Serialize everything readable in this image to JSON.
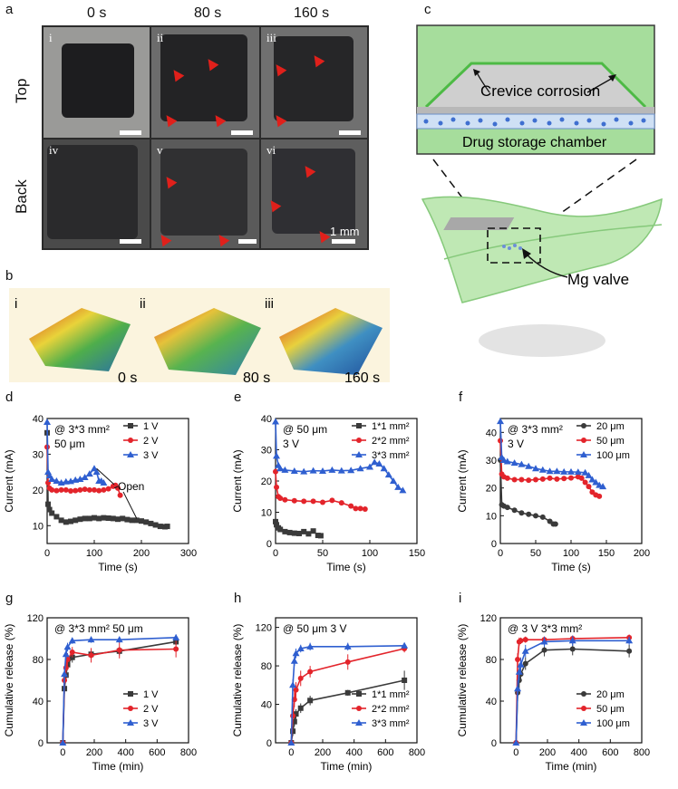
{
  "panels": {
    "a": "a",
    "b": "b",
    "c": "c",
    "d": "d",
    "e": "e",
    "f": "f",
    "g": "g",
    "h": "h",
    "i": "i"
  },
  "panel_a": {
    "times": [
      "0 s",
      "80 s",
      "160 s"
    ],
    "rows": [
      "Top",
      "Back"
    ],
    "tiles": [
      "i",
      "ii",
      "iii",
      "iv",
      "v",
      "vi"
    ],
    "scale": "1 mm"
  },
  "panel_b": {
    "tiles": [
      "i",
      "ii",
      "iii"
    ],
    "times": [
      "0 s",
      "80 s",
      "160 s"
    ]
  },
  "panel_c": {
    "crevice": "Crevice corrosion",
    "chamber": "Drug storage chamber",
    "valve": "Mg valve"
  },
  "colors": {
    "black": "#3a3a3a",
    "red": "#e3242b",
    "blue": "#2f5fd0",
    "arrow": "#e0201b"
  },
  "chart_data": [
    {
      "panel": "d",
      "type": "line",
      "annotation": [
        "@ 3*3 mm²",
        "50 μm"
      ],
      "callout": "Open",
      "xlabel": "Time (s)",
      "ylabel": "Current (mA)",
      "xlim": [
        0,
        300
      ],
      "ylim": [
        5,
        40
      ],
      "xticks": [
        "0",
        "100",
        "200",
        "300"
      ],
      "yticks": [
        "10",
        "20",
        "30",
        "40"
      ],
      "legend_position": "top-right",
      "series": [
        {
          "name": "1 V",
          "color": "black",
          "marker": "square",
          "x": [
            0,
            2,
            5,
            10,
            20,
            30,
            40,
            50,
            60,
            70,
            80,
            90,
            100,
            110,
            120,
            130,
            140,
            150,
            160,
            170,
            180,
            190,
            200,
            210,
            220,
            230,
            240,
            250,
            255
          ],
          "y": [
            36,
            16,
            14.5,
            13.5,
            12.5,
            11.5,
            11,
            11.2,
            11.5,
            11.8,
            12,
            12,
            12.2,
            12,
            12.2,
            12.1,
            12,
            11.8,
            12,
            11.7,
            11.5,
            11.5,
            11.3,
            11,
            10.6,
            10.2,
            9.8,
            9.7,
            9.8
          ]
        },
        {
          "name": "2 V",
          "color": "red",
          "marker": "circle",
          "x": [
            0,
            2,
            5,
            10,
            20,
            30,
            40,
            50,
            60,
            70,
            80,
            90,
            100,
            110,
            120,
            130,
            140,
            145,
            150,
            155
          ],
          "y": [
            32,
            22,
            20.5,
            20,
            19.8,
            20,
            20,
            19.7,
            19.8,
            20,
            20.2,
            20,
            20,
            19.8,
            20,
            20.3,
            21,
            21.3,
            20.5,
            18.5
          ]
        },
        {
          "name": "3 V",
          "color": "blue",
          "marker": "triangle",
          "x": [
            0,
            2,
            5,
            10,
            20,
            30,
            40,
            50,
            60,
            70,
            80,
            90,
            100,
            105,
            110,
            115,
            120
          ],
          "y": [
            39,
            25,
            24,
            23,
            22.5,
            22,
            22.3,
            22.4,
            22.8,
            23,
            23.5,
            24.5,
            26,
            25,
            22.5,
            22.5,
            22
          ]
        }
      ]
    },
    {
      "panel": "e",
      "type": "line",
      "annotation": [
        "@ 50 μm",
        "3 V"
      ],
      "xlabel": "Time (s)",
      "ylabel": "Current (mA)",
      "xlim": [
        0,
        150
      ],
      "ylim": [
        0,
        40
      ],
      "xticks": [
        "0",
        "50",
        "100",
        "150"
      ],
      "yticks": [
        "0",
        "10",
        "20",
        "30",
        "40"
      ],
      "legend_position": "top-right",
      "series": [
        {
          "name": "1*1 mm²",
          "color": "black",
          "marker": "square",
          "x": [
            0,
            1,
            3,
            5,
            10,
            15,
            20,
            25,
            30,
            35,
            40,
            45,
            48
          ],
          "y": [
            7,
            6,
            5,
            4.5,
            3.8,
            3.5,
            3.3,
            3.2,
            3.8,
            3.1,
            4,
            2.6,
            2.5
          ]
        },
        {
          "name": "2*2 mm²",
          "color": "red",
          "marker": "circle",
          "x": [
            0,
            1,
            3,
            5,
            10,
            20,
            30,
            40,
            50,
            60,
            70,
            80,
            85,
            90,
            95
          ],
          "y": [
            23,
            18,
            15,
            14.5,
            14,
            13.7,
            13.5,
            13.5,
            13.2,
            13.8,
            13,
            12,
            11.2,
            11.2,
            11
          ]
        },
        {
          "name": "3*3 mm²",
          "color": "blue",
          "marker": "triangle",
          "x": [
            0,
            1,
            3,
            5,
            10,
            20,
            30,
            40,
            50,
            60,
            70,
            80,
            90,
            100,
            105,
            110,
            115,
            120,
            125,
            130,
            135
          ],
          "y": [
            39,
            28,
            25,
            24,
            23.5,
            23.2,
            23,
            23.3,
            23.2,
            23.5,
            23.3,
            23.4,
            24,
            24.5,
            26,
            25.5,
            24,
            22,
            20,
            18,
            17
          ]
        }
      ]
    },
    {
      "panel": "f",
      "type": "line",
      "annotation": [
        "@ 3*3 mm²",
        "3 V"
      ],
      "xlabel": "Time (s)",
      "ylabel": "Current (mA)",
      "xlim": [
        0,
        200
      ],
      "ylim": [
        0,
        45
      ],
      "xticks": [
        "0",
        "50",
        "100",
        "150",
        "200"
      ],
      "yticks": [
        "0",
        "10",
        "20",
        "30",
        "40"
      ],
      "legend_position": "top-right",
      "series": [
        {
          "name": "20 μm",
          "color": "black",
          "marker": "circle",
          "x": [
            0,
            2,
            5,
            10,
            20,
            30,
            40,
            50,
            60,
            70,
            75,
            78
          ],
          "y": [
            30,
            14,
            13.5,
            13,
            12,
            11,
            10.5,
            10,
            9.5,
            8,
            7,
            7
          ]
        },
        {
          "name": "50 μm",
          "color": "red",
          "marker": "circle",
          "x": [
            0,
            2,
            5,
            10,
            20,
            30,
            40,
            50,
            60,
            70,
            80,
            90,
            100,
            110,
            115,
            120,
            125,
            130,
            135,
            140
          ],
          "y": [
            37,
            25,
            24,
            23.5,
            23,
            23,
            22.8,
            23,
            23.2,
            23.5,
            23.2,
            23.4,
            23.6,
            24,
            23.5,
            22,
            20.5,
            18.5,
            17.5,
            17
          ]
        },
        {
          "name": "100 μm",
          "color": "blue",
          "marker": "triangle",
          "x": [
            0,
            2,
            5,
            10,
            20,
            30,
            40,
            50,
            60,
            70,
            80,
            90,
            100,
            110,
            120,
            125,
            130,
            135,
            140,
            145
          ],
          "y": [
            44,
            31,
            30,
            29.5,
            29,
            28.5,
            27.8,
            27,
            26.5,
            26,
            26,
            25.8,
            25.8,
            25.7,
            25.5,
            24.5,
            23,
            22,
            21,
            20.5
          ]
        }
      ]
    },
    {
      "panel": "g",
      "type": "line",
      "annotation": [
        "@ 3*3 mm² 50 μm"
      ],
      "xlabel": "Time (min)",
      "ylabel": "Cumulative release (%)",
      "xlim": [
        -100,
        800
      ],
      "ylim": [
        0,
        120
      ],
      "xticks": [
        "0",
        "200",
        "400",
        "600",
        "800"
      ],
      "yticks": [
        "0",
        "40",
        "80",
        "120"
      ],
      "legend_position": "bottom-right",
      "series": [
        {
          "name": "1 V",
          "color": "black",
          "marker": "square",
          "x": [
            0,
            10,
            20,
            30,
            60,
            180,
            360,
            720
          ],
          "y": [
            0,
            52,
            65,
            75,
            82,
            85,
            88,
            97
          ],
          "err": [
            0,
            5,
            5,
            5,
            5,
            4,
            4,
            3
          ]
        },
        {
          "name": "2 V",
          "color": "red",
          "marker": "circle",
          "x": [
            0,
            10,
            20,
            30,
            60,
            180,
            360,
            720
          ],
          "y": [
            0,
            60,
            72,
            80,
            87,
            84,
            89,
            90
          ],
          "err": [
            0,
            6,
            6,
            6,
            5,
            7,
            8,
            8
          ]
        },
        {
          "name": "3 V",
          "color": "blue",
          "marker": "triangle",
          "x": [
            0,
            10,
            20,
            30,
            60,
            180,
            360,
            720
          ],
          "y": [
            0,
            66,
            85,
            92,
            98,
            99,
            99,
            101
          ],
          "err": [
            0,
            6,
            5,
            4,
            3,
            3,
            3,
            3
          ]
        }
      ]
    },
    {
      "panel": "h",
      "type": "line",
      "annotation": [
        "@ 50 μm  3 V"
      ],
      "xlabel": "Time (min)",
      "ylabel": "Cumulative release (%)",
      "xlim": [
        -100,
        800
      ],
      "ylim": [
        0,
        130
      ],
      "xticks": [
        "0",
        "200",
        "400",
        "600",
        "800"
      ],
      "yticks": [
        "0",
        "40",
        "80",
        "120"
      ],
      "legend_position": "bottom-right",
      "series": [
        {
          "name": "1*1 mm²",
          "color": "black",
          "marker": "square",
          "x": [
            0,
            10,
            20,
            30,
            60,
            120,
            360,
            720
          ],
          "y": [
            0,
            12,
            22,
            30,
            36,
            44,
            52,
            65
          ],
          "err": [
            0,
            5,
            5,
            5,
            5,
            5,
            3,
            10
          ]
        },
        {
          "name": "2*2 mm²",
          "color": "red",
          "marker": "circle",
          "x": [
            0,
            10,
            20,
            30,
            60,
            120,
            360,
            720
          ],
          "y": [
            0,
            28,
            45,
            55,
            67,
            74,
            84,
            98
          ],
          "err": [
            0,
            8,
            8,
            8,
            8,
            6,
            8,
            4
          ]
        },
        {
          "name": "3*3 mm²",
          "color": "blue",
          "marker": "triangle",
          "x": [
            0,
            10,
            20,
            30,
            60,
            120,
            360,
            720
          ],
          "y": [
            0,
            60,
            85,
            93,
            98,
            100,
            100,
            101
          ],
          "err": [
            0,
            6,
            5,
            5,
            4,
            4,
            4,
            3
          ]
        }
      ]
    },
    {
      "panel": "i",
      "type": "line",
      "annotation": [
        "@ 3 V  3*3 mm²"
      ],
      "xlabel": "Time (min)",
      "ylabel": "Cumulative release (%)",
      "xlim": [
        -100,
        800
      ],
      "ylim": [
        0,
        120
      ],
      "xticks": [
        "0",
        "200",
        "400",
        "600",
        "800"
      ],
      "yticks": [
        "0",
        "40",
        "80",
        "120"
      ],
      "legend_position": "bottom-right",
      "series": [
        {
          "name": "20 μm",
          "color": "black",
          "marker": "circle",
          "x": [
            0,
            10,
            20,
            30,
            60,
            180,
            360,
            720
          ],
          "y": [
            0,
            48,
            60,
            66,
            76,
            89,
            90,
            88
          ],
          "err": [
            0,
            8,
            8,
            8,
            6,
            6,
            6,
            6
          ]
        },
        {
          "name": "50 μm",
          "color": "red",
          "marker": "circle",
          "x": [
            0,
            10,
            20,
            30,
            60,
            180,
            360,
            720
          ],
          "y": [
            0,
            80,
            97,
            98,
            99,
            99,
            100,
            101
          ],
          "err": [
            0,
            6,
            4,
            3,
            3,
            3,
            3,
            3
          ]
        },
        {
          "name": "100 μm",
          "color": "blue",
          "marker": "triangle",
          "x": [
            0,
            10,
            20,
            30,
            60,
            180,
            360,
            720
          ],
          "y": [
            0,
            52,
            68,
            75,
            88,
            97,
            98,
            98
          ],
          "err": [
            0,
            8,
            8,
            7,
            6,
            5,
            5,
            4
          ]
        }
      ]
    }
  ]
}
